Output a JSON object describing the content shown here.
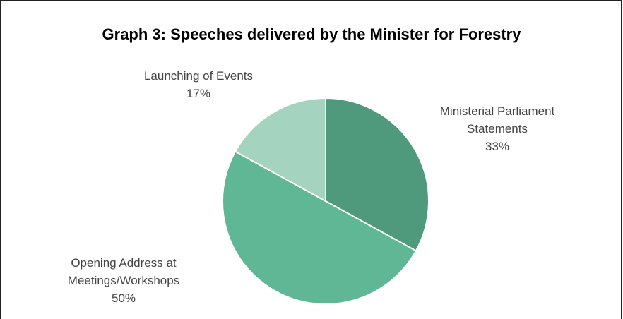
{
  "chart_data": {
    "type": "pie",
    "title": "Graph 3: Speeches delivered by the Minister for Forestry",
    "slices": [
      {
        "label_lines": [
          "Ministerial Parliament",
          "Statements"
        ],
        "value": 33,
        "value_label": "33%",
        "color": "#4f9a7c"
      },
      {
        "label_lines": [
          "Opening Address at",
          "Meetings/Workshops"
        ],
        "value": 50,
        "value_label": "50%",
        "color": "#5fb796"
      },
      {
        "label_lines": [
          "Launching of Events"
        ],
        "value": 17,
        "value_label": "17%",
        "color": "#a4d4bf"
      }
    ]
  }
}
